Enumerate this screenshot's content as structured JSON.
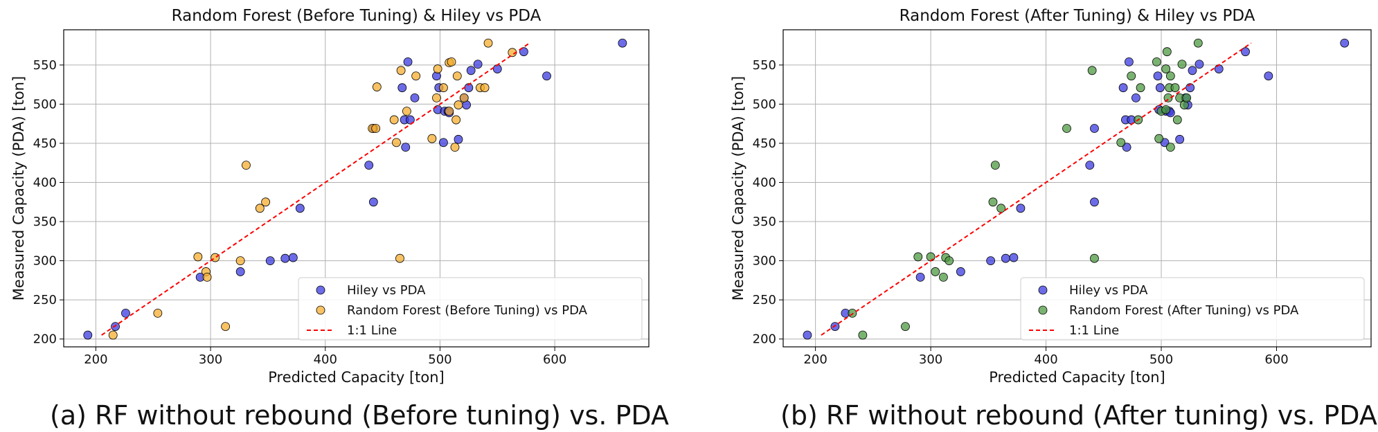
{
  "chart_data": [
    {
      "type": "scatter",
      "title": "Random Forest (Before Tuning) & Hiley vs PDA",
      "xlabel": "Predicted Capacity [ton]",
      "ylabel": "Measured Capacity (PDA) [ton]",
      "xlim": [
        172,
        682
      ],
      "ylim": [
        190,
        595
      ],
      "xticks": [
        200,
        300,
        400,
        500,
        600
      ],
      "yticks": [
        200,
        250,
        300,
        350,
        400,
        450,
        500,
        550
      ],
      "grid": true,
      "legend_position": "lower-right",
      "series": [
        {
          "name": "Hiley vs PDA",
          "color": "#3b3be0",
          "points": [
            [
              193,
              205
            ],
            [
              217,
              216
            ],
            [
              226,
              233
            ],
            [
              291,
              279
            ],
            [
              326,
              286
            ],
            [
              352,
              300
            ],
            [
              365,
              303
            ],
            [
              372,
              304
            ],
            [
              378,
              367
            ],
            [
              438,
              422
            ],
            [
              442,
              469
            ],
            [
              442,
              375
            ],
            [
              467,
              521
            ],
            [
              469,
              480
            ],
            [
              470,
              445
            ],
            [
              472,
              554
            ],
            [
              474,
              480
            ],
            [
              478,
              508
            ],
            [
              497,
              536
            ],
            [
              498,
              493
            ],
            [
              499,
              521
            ],
            [
              503,
              451
            ],
            [
              504,
              491
            ],
            [
              507,
              491
            ],
            [
              508,
              489
            ],
            [
              516,
              455
            ],
            [
              521,
              508
            ],
            [
              523,
              499
            ],
            [
              525,
              521
            ],
            [
              527,
              543
            ],
            [
              533,
              551
            ],
            [
              550,
              545
            ],
            [
              573,
              567
            ],
            [
              593,
              536
            ],
            [
              659,
              578
            ]
          ]
        },
        {
          "name": "Random Forest (Before Tuning) vs PDA",
          "color": "#f5ad2f",
          "points": [
            [
              215,
              205
            ],
            [
              254,
              233
            ],
            [
              289,
              305
            ],
            [
              296,
              286
            ],
            [
              297,
              279
            ],
            [
              304,
              304
            ],
            [
              313,
              216
            ],
            [
              326,
              300
            ],
            [
              331,
              422
            ],
            [
              343,
              367
            ],
            [
              348,
              375
            ],
            [
              441,
              469
            ],
            [
              445,
              522
            ],
            [
              444,
              469
            ],
            [
              460,
              480
            ],
            [
              462,
              451
            ],
            [
              465,
              303
            ],
            [
              466,
              543
            ],
            [
              471,
              491
            ],
            [
              479,
              536
            ],
            [
              493,
              456
            ],
            [
              497,
              508
            ],
            [
              498,
              545
            ],
            [
              503,
              521
            ],
            [
              508,
              491
            ],
            [
              508,
              553
            ],
            [
              510,
              554
            ],
            [
              513,
              445
            ],
            [
              514,
              480
            ],
            [
              515,
              536
            ],
            [
              516,
              499
            ],
            [
              521,
              508
            ],
            [
              535,
              521
            ],
            [
              539,
              521
            ],
            [
              542,
              578
            ],
            [
              563,
              566
            ]
          ]
        },
        {
          "name": "1:1 Line",
          "style": "dashed",
          "color": "#ff0000",
          "points": [
            [
              205,
              205
            ],
            [
              578,
              578
            ]
          ]
        }
      ]
    },
    {
      "type": "scatter",
      "title": "Random Forest (After Tuning) & Hiley vs PDA",
      "xlabel": "Predicted Capacity [ton]",
      "ylabel": "Measured Capacity (PDA) [ton]",
      "xlim": [
        172,
        682
      ],
      "ylim": [
        190,
        595
      ],
      "xticks": [
        200,
        300,
        400,
        500,
        600
      ],
      "yticks": [
        200,
        250,
        300,
        350,
        400,
        450,
        500,
        550
      ],
      "grid": true,
      "legend_position": "lower-right",
      "series": [
        {
          "name": "Hiley vs PDA",
          "color": "#3b3be0",
          "points": [
            [
              193,
              205
            ],
            [
              217,
              216
            ],
            [
              226,
              233
            ],
            [
              291,
              279
            ],
            [
              326,
              286
            ],
            [
              352,
              300
            ],
            [
              365,
              303
            ],
            [
              372,
              304
            ],
            [
              378,
              367
            ],
            [
              438,
              422
            ],
            [
              442,
              469
            ],
            [
              442,
              375
            ],
            [
              467,
              521
            ],
            [
              469,
              480
            ],
            [
              470,
              445
            ],
            [
              472,
              554
            ],
            [
              474,
              480
            ],
            [
              478,
              508
            ],
            [
              497,
              536
            ],
            [
              498,
              493
            ],
            [
              499,
              521
            ],
            [
              503,
              451
            ],
            [
              504,
              491
            ],
            [
              507,
              491
            ],
            [
              508,
              489
            ],
            [
              516,
              455
            ],
            [
              521,
              508
            ],
            [
              523,
              499
            ],
            [
              525,
              521
            ],
            [
              527,
              543
            ],
            [
              533,
              551
            ],
            [
              550,
              545
            ],
            [
              573,
              567
            ],
            [
              593,
              536
            ],
            [
              659,
              578
            ]
          ]
        },
        {
          "name": "Random Forest (After Tuning) vs PDA",
          "color": "#4d9a42",
          "points": [
            [
              232,
              233
            ],
            [
              241,
              205
            ],
            [
              278,
              216
            ],
            [
              289,
              305
            ],
            [
              300,
              305
            ],
            [
              304,
              286
            ],
            [
              311,
              279
            ],
            [
              313,
              304
            ],
            [
              316,
              300
            ],
            [
              354,
              375
            ],
            [
              356,
              422
            ],
            [
              361,
              367
            ],
            [
              418,
              469
            ],
            [
              440,
              543
            ],
            [
              442,
              303
            ],
            [
              465,
              451
            ],
            [
              474,
              536
            ],
            [
              480,
              480
            ],
            [
              482,
              521
            ],
            [
              496,
              554
            ],
            [
              498,
              456
            ],
            [
              500,
              491
            ],
            [
              504,
              493
            ],
            [
              504,
              545
            ],
            [
              505,
              567
            ],
            [
              506,
              508
            ],
            [
              507,
              521
            ],
            [
              508,
              445
            ],
            [
              508,
              536
            ],
            [
              512,
              521
            ],
            [
              514,
              480
            ],
            [
              516,
              508
            ],
            [
              518,
              551
            ],
            [
              520,
              499
            ],
            [
              522,
              508
            ],
            [
              532,
              578
            ]
          ]
        },
        {
          "name": "1:1 Line",
          "style": "dashed",
          "color": "#ff0000",
          "points": [
            [
              205,
              205
            ],
            [
              578,
              578
            ]
          ]
        }
      ]
    }
  ],
  "captions": [
    "(a) RF without rebound (Before tuning) vs. PDA",
    "(b) RF without rebound (After tuning) vs. PDA"
  ]
}
